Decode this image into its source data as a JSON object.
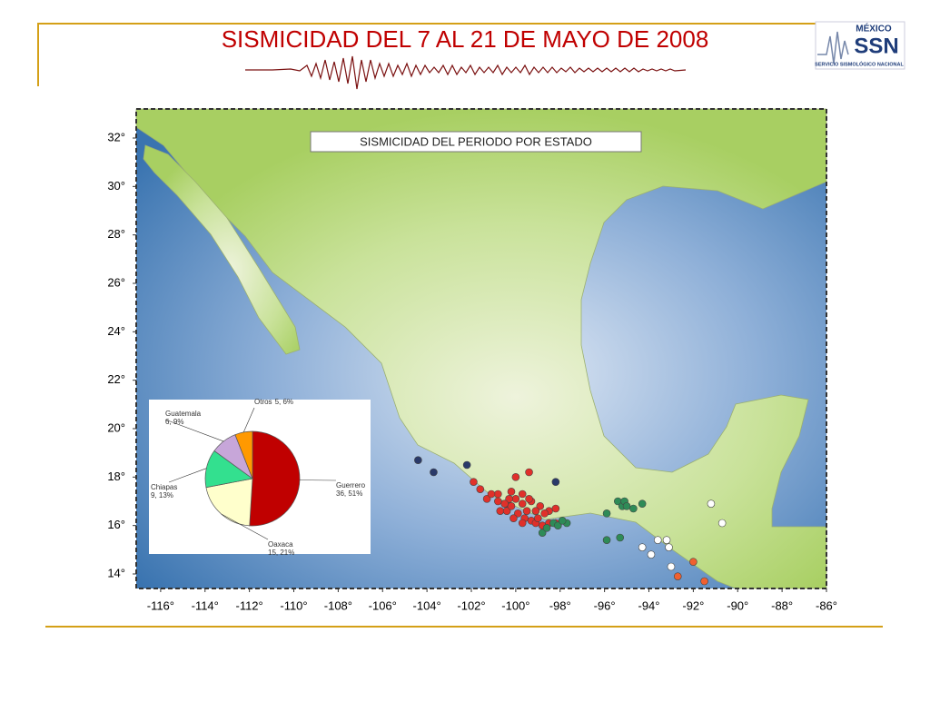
{
  "header": {
    "title": "SISMICIDAD DEL 7 AL 21 DE MAYO DE 2008"
  },
  "logo": {
    "country": "MÉXICO",
    "acronym": "SSN",
    "name": "SERVICIO SISMOLÓGICO NACIONAL"
  },
  "map": {
    "label": "SISMICIDAD DEL PERIODO POR ESTADO",
    "xlim": [
      -117.1,
      -86
    ],
    "ylim": [
      13.4,
      33.2
    ],
    "xticks": [
      {
        "value": -116,
        "label": "-116°"
      },
      {
        "value": -114,
        "label": "-114°"
      },
      {
        "value": -112,
        "label": "-112°"
      },
      {
        "value": -110,
        "label": "-110°"
      },
      {
        "value": -108,
        "label": "-108°"
      },
      {
        "value": -106,
        "label": "-106°"
      },
      {
        "value": -104,
        "label": "-104°"
      },
      {
        "value": -102,
        "label": "-102°"
      },
      {
        "value": -100,
        "label": "-100°"
      },
      {
        "value": -98,
        "label": "-98°"
      },
      {
        "value": -96,
        "label": "-96°"
      },
      {
        "value": -94,
        "label": "-94°"
      },
      {
        "value": -92,
        "label": "-92°"
      },
      {
        "value": -90,
        "label": "-90°"
      },
      {
        "value": -88,
        "label": "-88°"
      },
      {
        "value": -86,
        "label": "-86°"
      }
    ],
    "yticks": [
      {
        "value": 32,
        "label": "32°"
      },
      {
        "value": 30,
        "label": "30°"
      },
      {
        "value": 28,
        "label": "28°"
      },
      {
        "value": 26,
        "label": "26°"
      },
      {
        "value": 24,
        "label": "24°"
      },
      {
        "value": 22,
        "label": "22°"
      },
      {
        "value": 20,
        "label": "20°"
      },
      {
        "value": 18,
        "label": "18°"
      },
      {
        "value": 16,
        "label": "16°"
      },
      {
        "value": 14,
        "label": "14°"
      }
    ],
    "events": [
      {
        "color": "#e0302a",
        "lon": [
          -99.4,
          -100.0,
          -101.9,
          -101.6,
          -101.3,
          -100.8,
          -100.4,
          -100.0,
          -99.7,
          -99.3,
          -98.9,
          -98.5,
          -98.2,
          -100.7,
          -100.4,
          -100.2,
          -99.9,
          -99.6,
          -99.3,
          -99.1,
          -98.8,
          -98.5,
          -98.2,
          -100.8,
          -101.1,
          -99.7,
          -99.4,
          -100.3,
          -100.1,
          -99.0,
          -98.7,
          -99.7,
          -99.5,
          -99.1,
          -100.5,
          -100.2
        ],
        "lat": [
          18.2,
          18.0,
          17.8,
          17.5,
          17.1,
          17.3,
          16.9,
          17.1,
          16.9,
          17.0,
          16.8,
          16.6,
          16.7,
          16.6,
          16.6,
          16.8,
          16.5,
          16.3,
          16.2,
          16.1,
          16.0,
          16.1,
          16.1,
          17.0,
          17.3,
          17.3,
          17.1,
          17.1,
          16.3,
          16.3,
          16.5,
          16.1,
          16.6,
          16.6,
          16.9,
          17.4
        ]
      },
      {
        "color": "#2e8b57",
        "lon": [
          -95.4,
          -95.2,
          -95.1,
          -94.7,
          -94.3,
          -95.9,
          -98.3,
          -98.1,
          -97.7,
          -98.8,
          -95.9,
          -95.3,
          -98.6,
          -95.0,
          -97.9
        ],
        "lat": [
          17.0,
          16.8,
          17.0,
          16.7,
          16.9,
          16.5,
          16.1,
          16.0,
          16.1,
          15.7,
          15.4,
          15.5,
          15.9,
          16.8,
          16.2
        ]
      },
      {
        "color": "#ffffff",
        "lon": [
          -91.2,
          -90.7,
          -93.6,
          -93.2,
          -93.1,
          -93.9,
          -93.0,
          -94.3
        ],
        "lat": [
          16.9,
          16.1,
          15.4,
          15.4,
          15.1,
          14.8,
          14.3,
          15.1
        ]
      },
      {
        "color": "#f06030",
        "lon": [
          -92.0,
          -92.7,
          -91.5
        ],
        "lat": [
          14.5,
          13.9,
          13.7
        ]
      },
      {
        "color": "#2a3a6a",
        "lon": [
          -104.4,
          -103.7,
          -102.2,
          -98.2
        ],
        "lat": [
          18.7,
          18.2,
          18.5,
          17.8
        ]
      }
    ]
  },
  "chart_data": {
    "type": "pie",
    "categories": [
      "Guerrero",
      "Oaxaca",
      "Chiapas",
      "Guatemala",
      "Otros"
    ],
    "values": [
      51,
      21,
      13,
      9,
      6
    ],
    "value_labels": [
      "36, 51%",
      "15, 21%",
      "9, 13%",
      "6, 9%",
      "5, 6%"
    ],
    "colors": [
      "#c00000",
      "#ffffcc",
      "#33e08f",
      "#c7a6d9",
      "#ff9900"
    ]
  }
}
